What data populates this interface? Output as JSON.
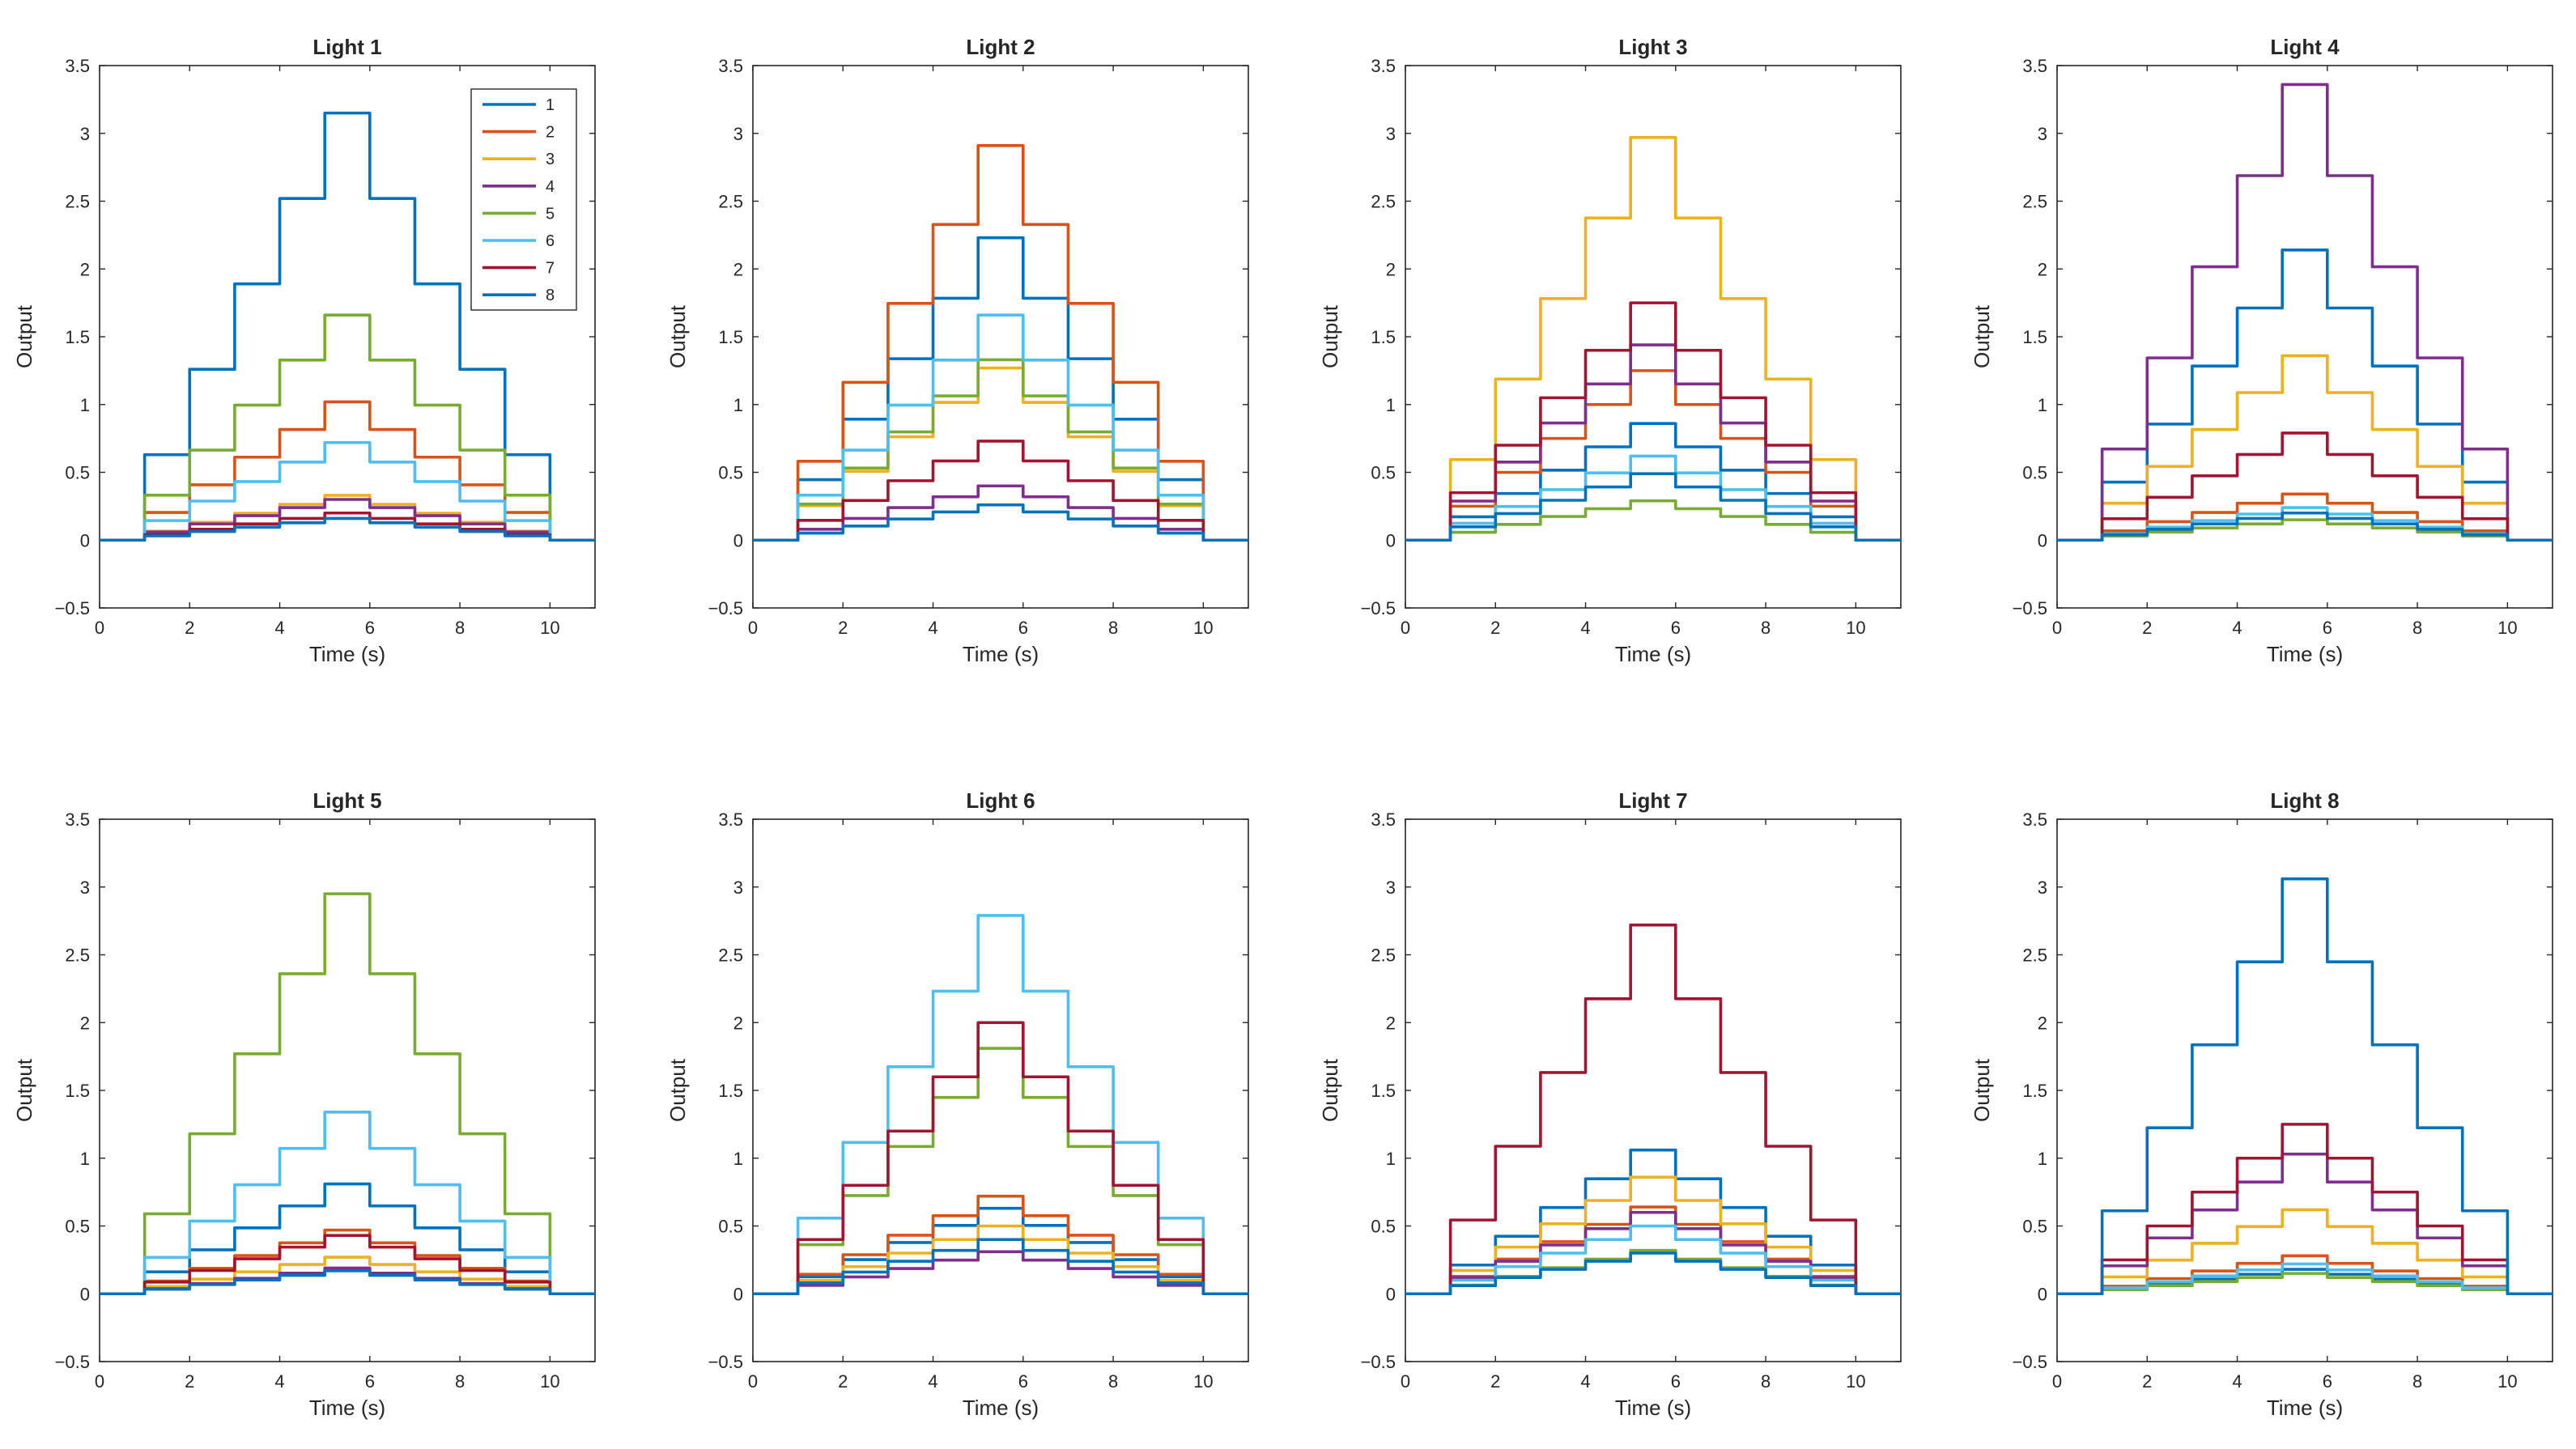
{
  "figure": {
    "colors": [
      "#0072BD",
      "#D95319",
      "#EDB120",
      "#7E2F8E",
      "#77AC30",
      "#4DBEEE",
      "#A2142F",
      "#0072BD"
    ],
    "x_ticks": [
      0,
      2,
      4,
      6,
      8,
      10
    ],
    "y_ticks": [
      "−0.5",
      "0",
      "0.5",
      "1",
      "1.5",
      "2",
      "2.5",
      "3",
      "3.5"
    ],
    "xlabel": "Time (s)",
    "ylabel": "Output",
    "legend_labels": [
      "1",
      "2",
      "3",
      "4",
      "5",
      "6",
      "7",
      "8"
    ]
  },
  "chart_data": [
    {
      "type": "line",
      "title": "Light 1",
      "xlabel": "Time (s)",
      "ylabel": "Output",
      "xlim": [
        0,
        11
      ],
      "ylim": [
        -0.5,
        3.5
      ],
      "legend": "top-right",
      "step_times": [
        1,
        2,
        3,
        4,
        5,
        6,
        7,
        8,
        9,
        10
      ],
      "series": [
        {
          "name": "1",
          "peak": 3.15
        },
        {
          "name": "2",
          "peak": 1.02
        },
        {
          "name": "3",
          "peak": 0.33
        },
        {
          "name": "4",
          "peak": 0.3
        },
        {
          "name": "5",
          "peak": 1.66
        },
        {
          "name": "6",
          "peak": 0.72
        },
        {
          "name": "7",
          "peak": 0.2
        },
        {
          "name": "8",
          "peak": 0.16
        }
      ]
    },
    {
      "type": "line",
      "title": "Light 2",
      "xlabel": "Time (s)",
      "ylabel": "Output",
      "xlim": [
        0,
        11
      ],
      "ylim": [
        -0.5,
        3.5
      ],
      "step_times": [
        1,
        2,
        3,
        4,
        5,
        6,
        7,
        8,
        9,
        10
      ],
      "series": [
        {
          "name": "1",
          "peak": 2.23
        },
        {
          "name": "2",
          "peak": 2.91
        },
        {
          "name": "3",
          "peak": 1.27
        },
        {
          "name": "4",
          "peak": 0.4
        },
        {
          "name": "5",
          "peak": 1.33
        },
        {
          "name": "6",
          "peak": 1.66
        },
        {
          "name": "7",
          "peak": 0.73
        },
        {
          "name": "8",
          "peak": 0.26
        }
      ]
    },
    {
      "type": "line",
      "title": "Light 3",
      "xlabel": "Time (s)",
      "ylabel": "Output",
      "xlim": [
        0,
        11
      ],
      "ylim": [
        -0.5,
        3.5
      ],
      "step_times": [
        1,
        2,
        3,
        4,
        5,
        6,
        7,
        8,
        9,
        10
      ],
      "series": [
        {
          "name": "1",
          "peak": 0.86
        },
        {
          "name": "2",
          "peak": 1.25
        },
        {
          "name": "3",
          "peak": 2.97
        },
        {
          "name": "4",
          "peak": 1.44
        },
        {
          "name": "5",
          "peak": 0.29
        },
        {
          "name": "6",
          "peak": 0.62
        },
        {
          "name": "7",
          "peak": 1.75
        },
        {
          "name": "8",
          "peak": 0.49
        }
      ]
    },
    {
      "type": "line",
      "title": "Light 4",
      "xlabel": "Time (s)",
      "ylabel": "Output",
      "xlim": [
        0,
        11
      ],
      "ylim": [
        -0.5,
        3.5
      ],
      "step_times": [
        1,
        2,
        3,
        4,
        5,
        6,
        7,
        8,
        9,
        10
      ],
      "series": [
        {
          "name": "1",
          "peak": 2.14
        },
        {
          "name": "2",
          "peak": 0.34
        },
        {
          "name": "3",
          "peak": 1.36
        },
        {
          "name": "4",
          "peak": 3.36
        },
        {
          "name": "5",
          "peak": 0.15
        },
        {
          "name": "6",
          "peak": 0.24
        },
        {
          "name": "7",
          "peak": 0.79
        },
        {
          "name": "8",
          "peak": 0.2
        }
      ]
    },
    {
      "type": "line",
      "title": "Light 5",
      "xlabel": "Time (s)",
      "ylabel": "Output",
      "xlim": [
        0,
        11
      ],
      "ylim": [
        -0.5,
        3.5
      ],
      "step_times": [
        1,
        2,
        3,
        4,
        5,
        6,
        7,
        8,
        9,
        10
      ],
      "series": [
        {
          "name": "1",
          "peak": 0.81
        },
        {
          "name": "2",
          "peak": 0.47
        },
        {
          "name": "3",
          "peak": 0.27
        },
        {
          "name": "4",
          "peak": 0.19
        },
        {
          "name": "5",
          "peak": 2.95
        },
        {
          "name": "6",
          "peak": 1.34
        },
        {
          "name": "7",
          "peak": 0.43
        },
        {
          "name": "8",
          "peak": 0.17
        }
      ]
    },
    {
      "type": "line",
      "title": "Light 6",
      "xlabel": "Time (s)",
      "ylabel": "Output",
      "xlim": [
        0,
        11
      ],
      "ylim": [
        -0.5,
        3.5
      ],
      "step_times": [
        1,
        2,
        3,
        4,
        5,
        6,
        7,
        8,
        9,
        10
      ],
      "series": [
        {
          "name": "1",
          "peak": 0.63
        },
        {
          "name": "2",
          "peak": 0.72
        },
        {
          "name": "3",
          "peak": 0.5
        },
        {
          "name": "4",
          "peak": 0.31
        },
        {
          "name": "5",
          "peak": 1.81
        },
        {
          "name": "6",
          "peak": 2.79
        },
        {
          "name": "7",
          "peak": 2.0
        },
        {
          "name": "8",
          "peak": 0.4
        }
      ]
    },
    {
      "type": "line",
      "title": "Light 7",
      "xlabel": "Time (s)",
      "ylabel": "Output",
      "xlim": [
        0,
        11
      ],
      "ylim": [
        -0.5,
        3.5
      ],
      "step_times": [
        1,
        2,
        3,
        4,
        5,
        6,
        7,
        8,
        9,
        10
      ],
      "series": [
        {
          "name": "1",
          "peak": 1.06
        },
        {
          "name": "2",
          "peak": 0.64
        },
        {
          "name": "3",
          "peak": 0.86
        },
        {
          "name": "4",
          "peak": 0.6
        },
        {
          "name": "5",
          "peak": 0.32
        },
        {
          "name": "6",
          "peak": 0.5
        },
        {
          "name": "7",
          "peak": 2.72
        },
        {
          "name": "8",
          "peak": 0.3
        }
      ]
    },
    {
      "type": "line",
      "title": "Light 8",
      "xlabel": "Time (s)",
      "ylabel": "Output",
      "xlim": [
        0,
        11
      ],
      "ylim": [
        -0.5,
        3.5
      ],
      "step_times": [
        1,
        2,
        3,
        4,
        5,
        6,
        7,
        8,
        9,
        10
      ],
      "series": [
        {
          "name": "1",
          "peak": 0.18
        },
        {
          "name": "2",
          "peak": 0.28
        },
        {
          "name": "3",
          "peak": 0.62
        },
        {
          "name": "4",
          "peak": 1.03
        },
        {
          "name": "5",
          "peak": 0.15
        },
        {
          "name": "6",
          "peak": 0.22
        },
        {
          "name": "7",
          "peak": 1.25
        },
        {
          "name": "8",
          "peak": 3.06
        }
      ]
    }
  ]
}
